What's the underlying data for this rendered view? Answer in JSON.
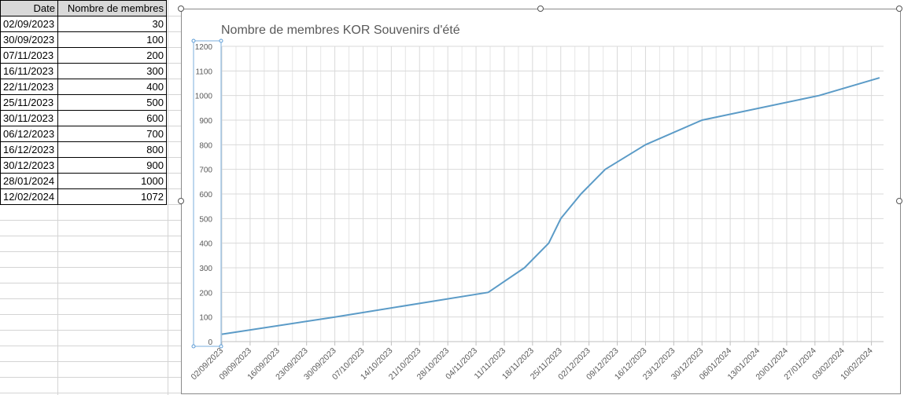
{
  "table": {
    "headers": [
      "Date",
      "Nombre de membres"
    ],
    "rows": [
      [
        "02/09/2023",
        "30"
      ],
      [
        "30/09/2023",
        "100"
      ],
      [
        "07/11/2023",
        "200"
      ],
      [
        "16/11/2023",
        "300"
      ],
      [
        "22/11/2023",
        "400"
      ],
      [
        "25/11/2023",
        "500"
      ],
      [
        "30/11/2023",
        "600"
      ],
      [
        "06/12/2023",
        "700"
      ],
      [
        "16/12/2023",
        "800"
      ],
      [
        "30/12/2023",
        "900"
      ],
      [
        "28/01/2024",
        "1000"
      ],
      [
        "12/02/2024",
        "1072"
      ]
    ]
  },
  "chart_data": {
    "type": "line",
    "title": "Nombre de membres KOR Souvenirs d'été",
    "x": [
      "02/09/2023",
      "30/09/2023",
      "07/11/2023",
      "16/11/2023",
      "22/11/2023",
      "25/11/2023",
      "30/11/2023",
      "06/12/2023",
      "16/12/2023",
      "30/12/2023",
      "28/01/2024",
      "12/02/2024"
    ],
    "series": [
      {
        "values": [
          30,
          100,
          200,
          300,
          400,
          500,
          600,
          700,
          800,
          900,
          1000,
          1072
        ]
      }
    ],
    "ylim": [
      0,
      1200
    ],
    "yticks": [
      "0",
      "100",
      "200",
      "300",
      "400",
      "500",
      "600",
      "700",
      "800",
      "900",
      "1000",
      "1100",
      "1200"
    ],
    "xticks": [
      "02/09/2023",
      "09/09/2023",
      "16/09/2023",
      "23/09/2023",
      "30/09/2023",
      "07/10/2023",
      "14/10/2023",
      "21/10/2023",
      "28/10/2023",
      "04/11/2023",
      "11/11/2023",
      "18/11/2023",
      "25/11/2023",
      "02/12/2023",
      "09/12/2023",
      "16/12/2023",
      "23/12/2023",
      "30/12/2023",
      "06/01/2024",
      "13/01/2024",
      "20/01/2024",
      "27/01/2024",
      "03/02/2024",
      "10/02/2024"
    ],
    "grid": true,
    "line_color": "#5b9bc7"
  }
}
